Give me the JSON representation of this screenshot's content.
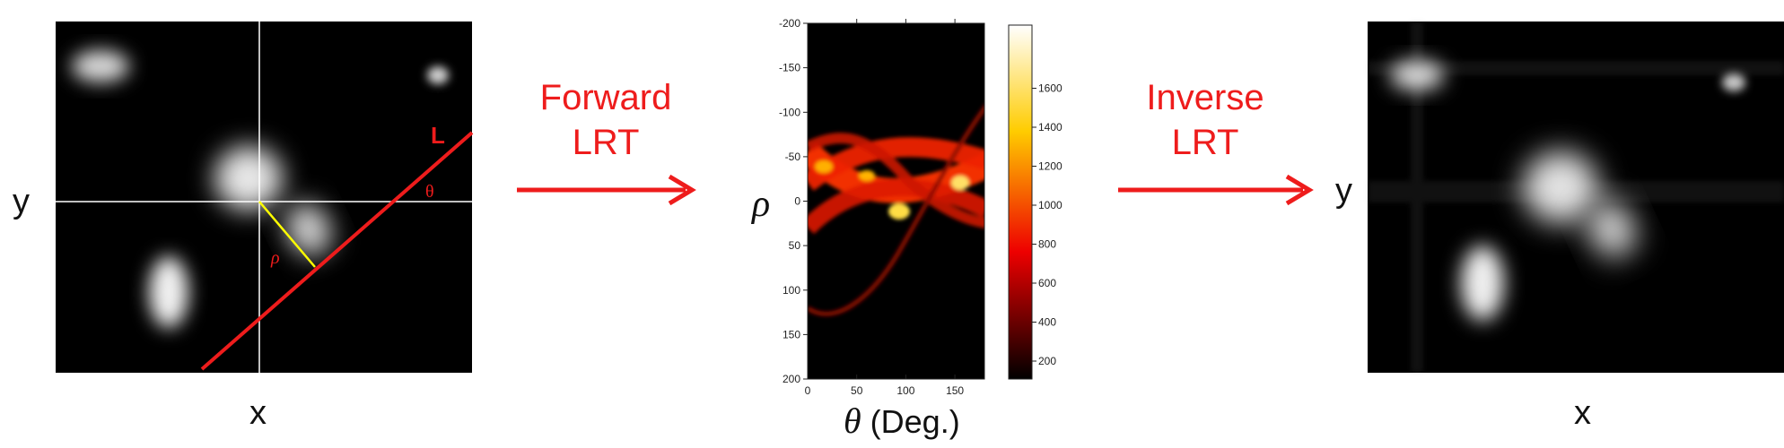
{
  "panel_input": {
    "axis_x": "x",
    "axis_y": "y",
    "line_label": "L",
    "rho_symbol": "ρ",
    "theta_symbol": "θ"
  },
  "arrow_forward": {
    "line1": "Forward",
    "line2": "LRT"
  },
  "sinogram": {
    "rho_label": "ρ",
    "theta_label_symbol": "θ",
    "theta_label_unit": " (Deg.)",
    "y_ticks": [
      "-200",
      "-150",
      "-100",
      "-50",
      "0",
      "50",
      "100",
      "150",
      "200"
    ],
    "x_ticks": [
      "0",
      "50",
      "100",
      "150"
    ],
    "colorbar_ticks": [
      "200",
      "400",
      "600",
      "800",
      "1000",
      "1200",
      "1400",
      "1600"
    ],
    "colormap": "hot"
  },
  "arrow_inverse": {
    "line1": "Inverse",
    "line2": "LRT"
  },
  "panel_output": {
    "axis_x": "x",
    "axis_y": "y"
  },
  "colors": {
    "accent_red": "#ee1c1c",
    "rho_segment": "#ffff00",
    "grid": "#ffffff"
  }
}
